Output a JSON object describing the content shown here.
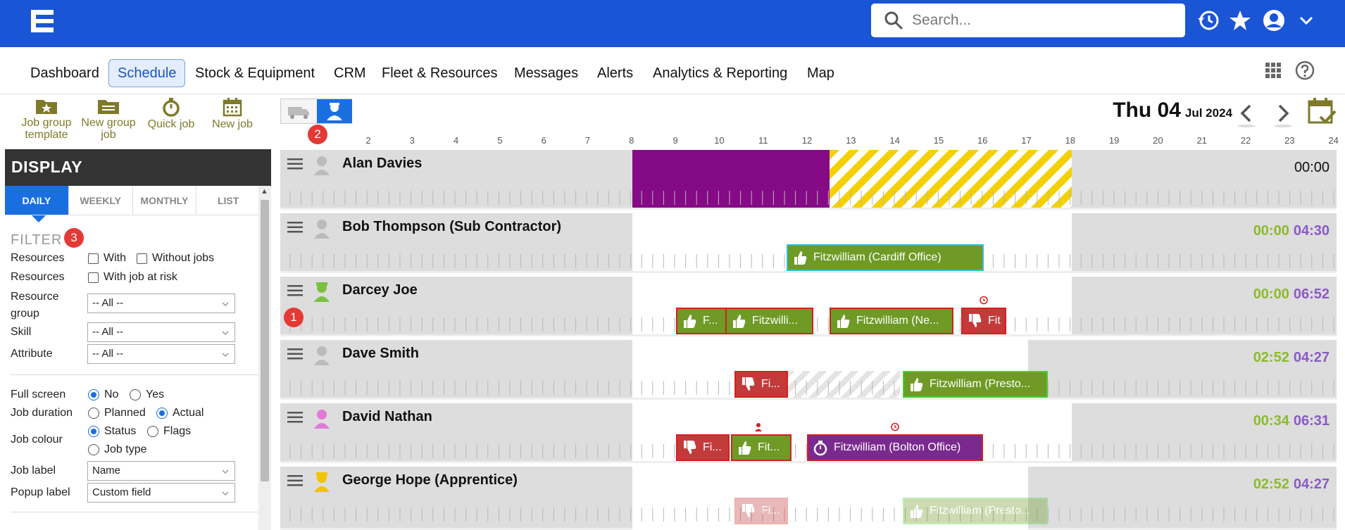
{
  "app": {
    "brand_color": "#1a55d6"
  },
  "search": {
    "placeholder": "Search..."
  },
  "top_icons": [
    "history-icon",
    "star-icon",
    "user-account-icon",
    "chevron-down-icon"
  ],
  "nav": {
    "items": [
      "Dashboard",
      "Schedule",
      "Stock & Equipment",
      "CRM",
      "Fleet & Resources",
      "Messages",
      "Alerts",
      "Analytics & Reporting",
      "Map"
    ],
    "active": "Schedule"
  },
  "toolbar": {
    "job_group_template": "Job group template",
    "new_group_job": "New group job",
    "quick_job": "Quick job",
    "new_job": "New job"
  },
  "badges": [
    "1",
    "2",
    "3"
  ],
  "sidebar": {
    "title": "DISPLAY",
    "tabs": [
      "DAILY",
      "WEEKLY",
      "MONTHLY",
      "LIST"
    ],
    "active_tab": "DAILY",
    "filter_title": "FILTER",
    "resources_label": "Resources",
    "with_label": "With",
    "without_jobs_label": "Without jobs",
    "resources2_label": "Resources",
    "with_job_at_risk_label": "With job at risk",
    "resource_group_label": "Resource group",
    "resource_group_value": "-- All --",
    "skill_label": "Skill",
    "skill_value": "-- All --",
    "attribute_label": "Attribute",
    "attribute_value": "-- All --",
    "full_screen_label": "Full screen",
    "no_label": "No",
    "yes_label": "Yes",
    "full_screen_value": "No",
    "job_duration_label": "Job duration",
    "planned_label": "Planned",
    "actual_label": "Actual",
    "job_duration_value": "Actual",
    "job_colour_label": "Job colour",
    "status_label": "Status",
    "flags_label": "Flags",
    "job_type_label": "Job type",
    "job_colour_value": "Status",
    "job_label_label": "Job label",
    "job_label_value": "Name",
    "popup_label_label": "Popup label",
    "popup_label_value": "Custom field"
  },
  "schedule": {
    "date_day": "Thu 04",
    "date_month_year": "Jul 2024",
    "hours": [
      "2",
      "3",
      "4",
      "5",
      "6",
      "7",
      "8",
      "9",
      "10",
      "11",
      "12",
      "13",
      "14",
      "15",
      "16",
      "17",
      "18",
      "19",
      "20",
      "21",
      "22",
      "23",
      "24"
    ],
    "rows": [
      {
        "name": "Alan Davies",
        "total_a": "",
        "total_b": "00:00"
      },
      {
        "name": "Bob Thompson (Sub Contractor)",
        "total_a": "00:00",
        "total_b": "04:30"
      },
      {
        "name": "Darcey Joe",
        "total_a": "00:00",
        "total_b": "06:52"
      },
      {
        "name": "Dave Smith",
        "total_a": "02:52",
        "total_b": "04:27"
      },
      {
        "name": "David Nathan",
        "total_a": "00:34",
        "total_b": "06:31"
      },
      {
        "name": "George Hope (Apprentice)",
        "total_a": "02:52",
        "total_b": "04:27"
      }
    ],
    "jobs": {
      "bob_1": "Fitzwilliam (Cardiff Office)",
      "darcey_1": "F...",
      "darcey_2": "Fitzwilli...",
      "darcey_3": "Fitzwilliam (Ne...",
      "darcey_4": "Fit",
      "dave_1": "Fi...",
      "dave_2": "Fitzwilliam (Presto...",
      "david_1": "Fi...",
      "david_2": "Fit...",
      "david_3": "Fitzwilliam (Bolton Office)",
      "george_1": "Fi...",
      "george_2": "Fitzwilliam (Presto..."
    }
  }
}
